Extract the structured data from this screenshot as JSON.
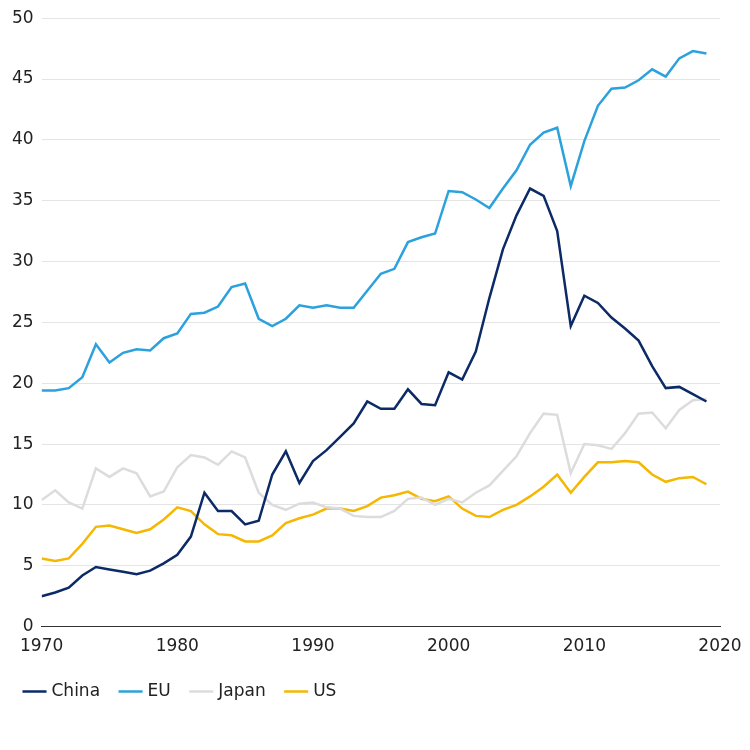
{
  "chart_data": {
    "type": "line",
    "x": [
      1970,
      1971,
      1972,
      1973,
      1974,
      1975,
      1976,
      1977,
      1978,
      1979,
      1980,
      1981,
      1982,
      1983,
      1984,
      1985,
      1986,
      1987,
      1988,
      1989,
      1990,
      1991,
      1992,
      1993,
      1994,
      1995,
      1996,
      1997,
      1998,
      1999,
      2000,
      2001,
      2002,
      2003,
      2004,
      2005,
      2006,
      2007,
      2008,
      2009,
      2010,
      2011,
      2012,
      2013,
      2014,
      2015,
      2016,
      2017,
      2018,
      2019
    ],
    "series": [
      {
        "name": "China",
        "color": "#0b2a66",
        "values": [
          2.5,
          2.8,
          3.2,
          4.2,
          4.9,
          4.7,
          4.5,
          4.3,
          4.6,
          5.2,
          5.9,
          7.4,
          11.0,
          9.5,
          9.5,
          8.4,
          8.7,
          12.5,
          14.4,
          11.8,
          13.6,
          14.5,
          15.6,
          16.7,
          18.5,
          17.9,
          17.9,
          19.5,
          18.3,
          18.2,
          20.9,
          20.3,
          22.6,
          27.0,
          31.0,
          33.8,
          36.0,
          35.4,
          32.5,
          24.7,
          27.2,
          26.6,
          25.4,
          24.5,
          23.5,
          21.4,
          19.6,
          19.7,
          19.1,
          18.5
        ]
      },
      {
        "name": "EU",
        "color": "#2ba1dd",
        "values": [
          19.4,
          19.4,
          19.6,
          20.5,
          23.2,
          21.7,
          22.5,
          22.8,
          22.7,
          23.7,
          24.1,
          25.7,
          25.8,
          26.3,
          27.9,
          28.2,
          25.3,
          24.7,
          25.3,
          26.4,
          26.2,
          26.4,
          26.2,
          26.2,
          27.6,
          29.0,
          29.4,
          31.6,
          32.0,
          32.3,
          35.8,
          35.7,
          35.1,
          34.4,
          36.0,
          37.5,
          39.6,
          40.6,
          41.0,
          36.2,
          39.9,
          42.8,
          44.2,
          44.3,
          44.9,
          45.8,
          45.2,
          46.7,
          47.3,
          47.1
        ]
      },
      {
        "name": "Japan",
        "color": "#dcdcdc",
        "values": [
          10.4,
          11.2,
          10.2,
          9.7,
          13.0,
          12.3,
          13.0,
          12.6,
          10.7,
          11.1,
          13.1,
          14.1,
          13.9,
          13.3,
          14.4,
          13.9,
          11.0,
          10.0,
          9.6,
          10.1,
          10.2,
          9.8,
          9.7,
          9.1,
          9.0,
          9.0,
          9.5,
          10.5,
          10.6,
          10.0,
          10.5,
          10.2,
          11.0,
          11.6,
          12.8,
          14.0,
          15.9,
          17.5,
          17.4,
          12.6,
          15.0,
          14.9,
          14.6,
          15.9,
          17.5,
          17.6,
          16.3,
          17.8,
          18.6,
          18.7
        ]
      },
      {
        "name": "US",
        "color": "#f5b700",
        "values": [
          5.6,
          5.4,
          5.6,
          6.8,
          8.2,
          8.3,
          8.0,
          7.7,
          8.0,
          8.8,
          9.8,
          9.5,
          8.4,
          7.6,
          7.5,
          7.0,
          7.0,
          7.5,
          8.5,
          8.9,
          9.2,
          9.7,
          9.7,
          9.5,
          9.9,
          10.6,
          10.8,
          11.1,
          10.5,
          10.3,
          10.7,
          9.7,
          9.1,
          9.0,
          9.6,
          10.0,
          10.7,
          11.5,
          12.5,
          11.0,
          12.3,
          13.5,
          13.5,
          13.6,
          13.5,
          12.5,
          11.9,
          12.2,
          12.3,
          11.7
        ]
      }
    ],
    "xlim": [
      1970,
      2020
    ],
    "xticks": [
      1970,
      1980,
      1990,
      2000,
      2010,
      2020
    ],
    "ylim": [
      0,
      50
    ],
    "yticks": [
      0,
      5,
      10,
      15,
      20,
      25,
      30,
      35,
      40,
      45,
      50
    ],
    "grid": true,
    "legend": "bottom-left"
  }
}
